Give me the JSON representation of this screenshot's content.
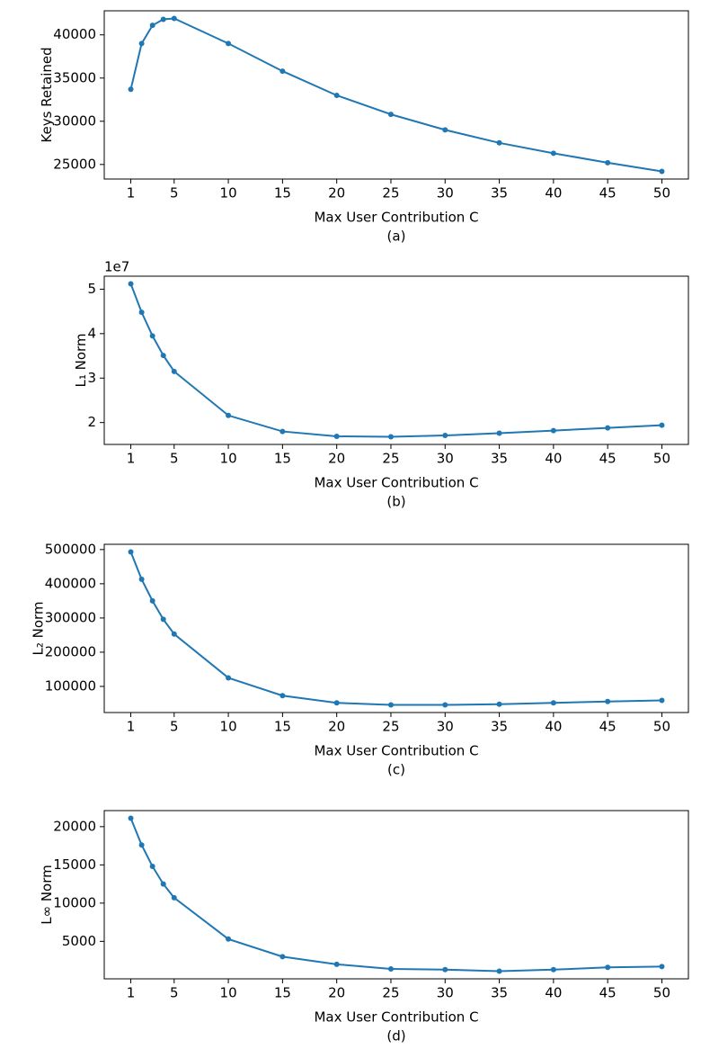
{
  "chart_data": [
    {
      "type": "line",
      "ylabel": "Keys Retained",
      "xlabel": "Max User Contribution C",
      "caption": "(a)",
      "x": [
        1,
        2,
        3,
        4,
        5,
        10,
        15,
        20,
        25,
        30,
        35,
        40,
        45,
        50
      ],
      "series": [
        {
          "color": "#1f77b4",
          "values": [
            33700,
            39000,
            41100,
            41800,
            41900,
            39000,
            35800,
            33000,
            30800,
            29000,
            27500,
            26300,
            25200,
            24200
          ]
        }
      ],
      "xlim": [
        -1.45,
        52.45
      ],
      "xticks": [
        1,
        5,
        10,
        15,
        20,
        25,
        30,
        35,
        40,
        45,
        50
      ],
      "ylim": [
        23315,
        42785
      ],
      "yticks": [
        25000,
        30000,
        35000,
        40000
      ]
    },
    {
      "type": "line",
      "ylabel": "L₁ Norm",
      "xlabel": "Max User Contribution C",
      "caption": "(b)",
      "y_offset_label": "1e7",
      "x": [
        1,
        2,
        3,
        4,
        5,
        10,
        15,
        20,
        25,
        30,
        35,
        40,
        45,
        50
      ],
      "series": [
        {
          "color": "#1f77b4",
          "values": [
            51200000,
            44800000,
            39500000,
            35100000,
            31500000,
            21600000,
            18000000,
            16900000,
            16800000,
            17100000,
            17600000,
            18200000,
            18800000,
            19400000
          ]
        }
      ],
      "xlim": [
        -1.45,
        52.45
      ],
      "xticks": [
        1,
        5,
        10,
        15,
        20,
        25,
        30,
        35,
        40,
        45,
        50
      ],
      "ylim": [
        15080000,
        52920000
      ],
      "yticks": [
        {
          "value": 20000000,
          "label": "2"
        },
        {
          "value": 30000000,
          "label": "3"
        },
        {
          "value": 40000000,
          "label": "4"
        },
        {
          "value": 50000000,
          "label": "5"
        }
      ]
    },
    {
      "type": "line",
      "ylabel": "L₂ Norm",
      "xlabel": "Max User Contribution C",
      "caption": "(c)",
      "x": [
        1,
        2,
        3,
        4,
        5,
        10,
        15,
        20,
        25,
        30,
        35,
        40,
        45,
        50
      ],
      "series": [
        {
          "color": "#1f77b4",
          "values": [
            493000,
            413000,
            350000,
            296000,
            253000,
            125000,
            73000,
            52000,
            46000,
            46000,
            48000,
            52000,
            56000,
            59000
          ]
        }
      ],
      "xlim": [
        -1.45,
        52.45
      ],
      "xticks": [
        1,
        5,
        10,
        15,
        20,
        25,
        30,
        35,
        40,
        45,
        50
      ],
      "ylim": [
        23650,
        515350
      ],
      "yticks": [
        100000,
        200000,
        300000,
        400000,
        500000
      ]
    },
    {
      "type": "line",
      "ylabel": "L∞ Norm",
      "xlabel": "Max User Contribution C",
      "caption": "(d)",
      "x": [
        1,
        2,
        3,
        4,
        5,
        10,
        15,
        20,
        25,
        30,
        35,
        40,
        45,
        50
      ],
      "series": [
        {
          "color": "#1f77b4",
          "values": [
            21100,
            17600,
            14800,
            12500,
            10700,
            5300,
            3000,
            2000,
            1400,
            1300,
            1100,
            1300,
            1600,
            1700
          ]
        }
      ],
      "xlim": [
        -1.45,
        52.45
      ],
      "xticks": [
        1,
        5,
        10,
        15,
        20,
        25,
        30,
        35,
        40,
        45,
        50
      ],
      "ylim": [
        100,
        22100
      ],
      "yticks": [
        5000,
        10000,
        15000,
        20000
      ]
    }
  ]
}
